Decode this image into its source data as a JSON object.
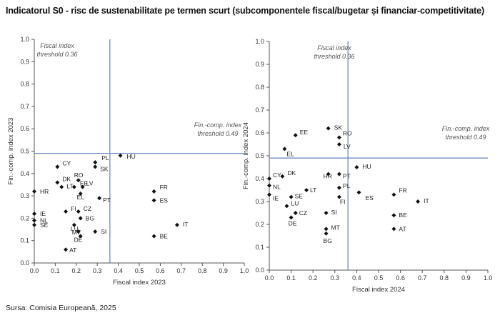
{
  "title": "Indicatorul S0 - risc de sustenabilitate pe termen scurt (subcomponentele fiscal/bugetar și financiar-competitivitate)",
  "source": "Sursa: Comisia Europeană, 2025",
  "chart_data": [
    {
      "type": "scatter",
      "xlabel": "Fiscal index 2023",
      "ylabel": "Fin.-comp. index 2023",
      "xlim": [
        0,
        1
      ],
      "ylim": [
        0,
        1
      ],
      "ticks": [
        "0.0",
        "0.1",
        "0.2",
        "0.3",
        "0.4",
        "0.5",
        "0.6",
        "0.7",
        "0.8",
        "0.9",
        "1.0"
      ],
      "grid": false,
      "threshold_x": {
        "value": 0.36,
        "label_line1": "Fiscal index",
        "label_line2": "threshold 0.36"
      },
      "threshold_y": {
        "value": 0.49,
        "label_line1": "Fin.-comp. index",
        "label_line2": "threshold 0.49"
      },
      "points": [
        {
          "label": "CY",
          "x": 0.11,
          "y": 0.43
        },
        {
          "label": "DK",
          "x": 0.11,
          "y": 0.36
        },
        {
          "label": "HR",
          "x": 0.0,
          "y": 0.32
        },
        {
          "label": "LT",
          "x": 0.13,
          "y": 0.34
        },
        {
          "label": "IE",
          "x": 0.0,
          "y": 0.22
        },
        {
          "label": "NL",
          "x": 0.0,
          "y": 0.19
        },
        {
          "label": "SE",
          "x": 0.0,
          "y": 0.17
        },
        {
          "label": "FI",
          "x": 0.15,
          "y": 0.23
        },
        {
          "label": "CZ",
          "x": 0.21,
          "y": 0.23
        },
        {
          "label": "BG",
          "x": 0.22,
          "y": 0.2
        },
        {
          "label": "LU",
          "x": 0.19,
          "y": 0.17
        },
        {
          "label": "MT",
          "x": 0.21,
          "y": 0.14
        },
        {
          "label": "DE",
          "x": 0.22,
          "y": 0.12
        },
        {
          "label": "AT",
          "x": 0.15,
          "y": 0.06
        },
        {
          "label": "RO",
          "x": 0.21,
          "y": 0.37
        },
        {
          "label": "EE",
          "x": 0.19,
          "y": 0.34
        },
        {
          "label": "LV",
          "x": 0.23,
          "y": 0.34
        },
        {
          "label": "EL",
          "x": 0.22,
          "y": 0.31
        },
        {
          "label": "PL",
          "x": 0.29,
          "y": 0.45
        },
        {
          "label": "SK",
          "x": 0.29,
          "y": 0.43
        },
        {
          "label": "SI",
          "x": 0.29,
          "y": 0.14
        },
        {
          "label": "PT",
          "x": 0.31,
          "y": 0.29
        },
        {
          "label": "HU",
          "x": 0.41,
          "y": 0.48
        },
        {
          "label": "FR",
          "x": 0.57,
          "y": 0.32
        },
        {
          "label": "ES",
          "x": 0.57,
          "y": 0.28
        },
        {
          "label": "BE",
          "x": 0.57,
          "y": 0.12
        },
        {
          "label": "IT",
          "x": 0.68,
          "y": 0.17
        }
      ]
    },
    {
      "type": "scatter",
      "xlabel": "Fiscal index 2024",
      "ylabel": "Fin.-comp. index 2024",
      "xlim": [
        0,
        1
      ],
      "ylim": [
        0,
        1
      ],
      "ticks": [
        "0.0",
        "0.1",
        "0.2",
        "0.3",
        "0.4",
        "0.5",
        "0.6",
        "0.7",
        "0.8",
        "0.9",
        "1.0"
      ],
      "grid": false,
      "threshold_x": {
        "value": 0.36,
        "label_line1": "Fiscal index",
        "label_line2": "threshold 0.36"
      },
      "threshold_y": {
        "value": 0.49,
        "label_line1": "Fin.-comp. index",
        "label_line2": "threshold 0.49"
      },
      "points": [
        {
          "label": "SK",
          "x": 0.27,
          "y": 0.62
        },
        {
          "label": "RO",
          "x": 0.32,
          "y": 0.58
        },
        {
          "label": "EE",
          "x": 0.12,
          "y": 0.59
        },
        {
          "label": "LV",
          "x": 0.32,
          "y": 0.55
        },
        {
          "label": "EL",
          "x": 0.07,
          "y": 0.53
        },
        {
          "label": "CY",
          "x": 0.0,
          "y": 0.4
        },
        {
          "label": "DK",
          "x": 0.06,
          "y": 0.41
        },
        {
          "label": "NL",
          "x": 0.0,
          "y": 0.37
        },
        {
          "label": "IE",
          "x": 0.0,
          "y": 0.33
        },
        {
          "label": "SE",
          "x": 0.1,
          "y": 0.32
        },
        {
          "label": "LU",
          "x": 0.08,
          "y": 0.28
        },
        {
          "label": "CZ",
          "x": 0.12,
          "y": 0.25
        },
        {
          "label": "DE",
          "x": 0.1,
          "y": 0.23
        },
        {
          "label": "LT",
          "x": 0.17,
          "y": 0.35
        },
        {
          "label": "HR",
          "x": 0.27,
          "y": 0.42
        },
        {
          "label": "PT",
          "x": 0.32,
          "y": 0.42
        },
        {
          "label": "PL",
          "x": 0.32,
          "y": 0.36
        },
        {
          "label": "FI",
          "x": 0.32,
          "y": 0.32
        },
        {
          "label": "SI",
          "x": 0.26,
          "y": 0.25
        },
        {
          "label": "MT",
          "x": 0.26,
          "y": 0.18
        },
        {
          "label": "BG",
          "x": 0.26,
          "y": 0.16
        },
        {
          "label": "HU",
          "x": 0.4,
          "y": 0.45
        },
        {
          "label": "ES",
          "x": 0.41,
          "y": 0.34
        },
        {
          "label": "FR",
          "x": 0.57,
          "y": 0.33
        },
        {
          "label": "BE",
          "x": 0.57,
          "y": 0.24
        },
        {
          "label": "AT",
          "x": 0.57,
          "y": 0.18
        },
        {
          "label": "IT",
          "x": 0.68,
          "y": 0.3
        }
      ]
    }
  ],
  "colors": {
    "marker": "#111111",
    "threshold_line": "#6c8ebf",
    "axis": "#555555"
  }
}
